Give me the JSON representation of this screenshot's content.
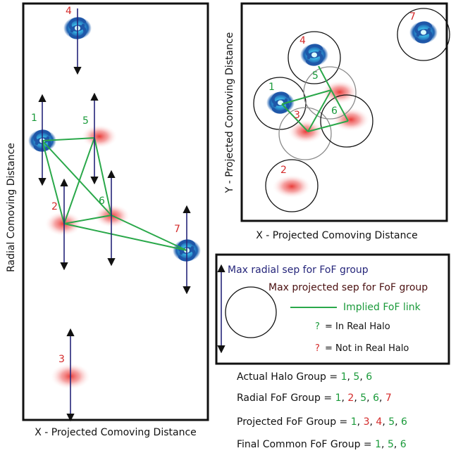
{
  "panels": {
    "left": {
      "xlabel": "X - Projected Comoving Distance",
      "ylabel": "Radial Comoving Distance"
    },
    "topright": {
      "xlabel": "X - Projected Comoving Distance",
      "ylabel": "Y - Projected Comoving Distance"
    }
  },
  "objects": {
    "labels": [
      "1",
      "2",
      "3",
      "4",
      "5",
      "6",
      "7"
    ],
    "in_real_halo": [
      "1",
      "5",
      "6"
    ],
    "not_in_real_halo": [
      "2",
      "3",
      "4",
      "7"
    ],
    "galaxies": [
      "1",
      "4",
      "7"
    ],
    "gas_blobs": [
      "2",
      "3",
      "5",
      "6"
    ]
  },
  "legend": {
    "radial": "Max radial sep for FoF group",
    "projected": "Max projected sep for FoF group",
    "link": "Implied FoF link",
    "in_real_q": "?",
    "in_real_text": "= In Real Halo",
    "not_real_q": "?",
    "not_real_text": "= Not in Real Halo"
  },
  "groups": [
    {
      "label": "Actual Halo Group = ",
      "members": [
        {
          "n": "1",
          "real": true
        },
        {
          "n": "5",
          "real": true
        },
        {
          "n": "6",
          "real": true
        }
      ]
    },
    {
      "label": "Radial FoF Group = ",
      "members": [
        {
          "n": "1",
          "real": true
        },
        {
          "n": "2",
          "real": false
        },
        {
          "n": "5",
          "real": true
        },
        {
          "n": "6",
          "real": true
        },
        {
          "n": "7",
          "real": false
        }
      ]
    },
    {
      "label": "Projected FoF Group = ",
      "members": [
        {
          "n": "1",
          "real": true
        },
        {
          "n": "3",
          "real": false
        },
        {
          "n": "4",
          "real": false
        },
        {
          "n": "5",
          "real": true
        },
        {
          "n": "6",
          "real": true
        }
      ]
    },
    {
      "label": "Final Common FoF Group = ",
      "members": [
        {
          "n": "1",
          "real": true
        },
        {
          "n": "5",
          "real": true
        },
        {
          "n": "6",
          "real": true
        }
      ]
    }
  ],
  "colors": {
    "green": "#1a9a3a",
    "red": "#d42a2a",
    "navy": "#25257a",
    "darkred": "#4a1010",
    "link": "#2aa84a"
  }
}
